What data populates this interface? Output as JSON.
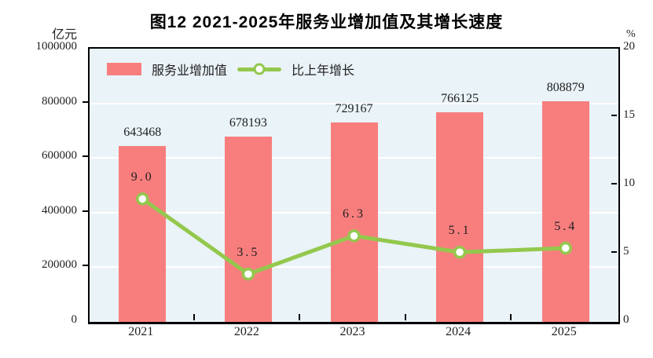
{
  "title": "图12  2021-2025年服务业增加值及其增长速度",
  "left_axis": {
    "unit": "亿元",
    "min": 0,
    "max": 1000000,
    "ticks": [
      "1000000",
      "800000",
      "600000",
      "400000",
      "200000",
      "0"
    ]
  },
  "right_axis": {
    "unit": "%",
    "min": 0,
    "max": 20,
    "ticks": [
      "20",
      "15",
      "10",
      "5",
      "0"
    ]
  },
  "legend": {
    "bar_label": "服务业增加值",
    "line_label": "比上年增长"
  },
  "colors": {
    "bar": "#f87e7e",
    "line": "#93c84d",
    "marker_fill": "#ffffff",
    "plot_background": "#eaf3f7",
    "gridline": "#ffffff",
    "axis": "#000000"
  },
  "chart_data": {
    "type": "bar",
    "title": "图12  2021-2025年服务业增加值及其增长速度",
    "categories": [
      "2021",
      "2022",
      "2023",
      "2024",
      "2025"
    ],
    "series": [
      {
        "name": "服务业增加值",
        "type": "bar",
        "axis": "left",
        "unit": "亿元",
        "values": [
          643468,
          678193,
          729167,
          766125,
          808879
        ],
        "labels": [
          "643468",
          "678193",
          "729167",
          "766125",
          "808879"
        ]
      },
      {
        "name": "比上年增长",
        "type": "line",
        "axis": "right",
        "unit": "%",
        "values": [
          9.0,
          3.5,
          6.3,
          5.1,
          5.4
        ],
        "labels": [
          "9.0",
          "3.5",
          "6.3",
          "5.1",
          "5.4"
        ]
      }
    ],
    "left_ylim": [
      0,
      1000000
    ],
    "right_ylim": [
      0,
      20
    ],
    "grid": true,
    "legend_position": "top-left-inside"
  }
}
